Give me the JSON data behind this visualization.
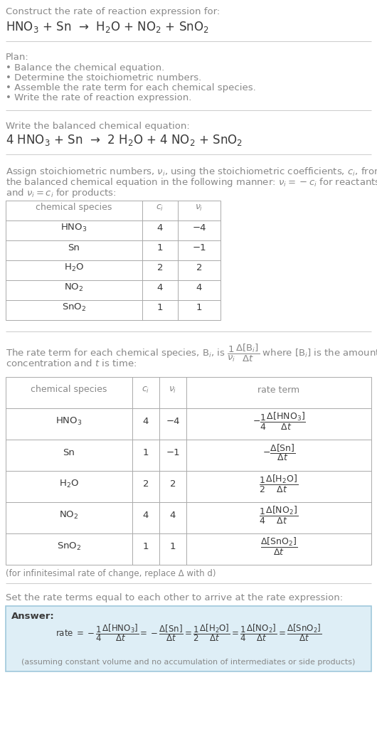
{
  "title_line1": "Construct the rate of reaction expression for:",
  "title_line2": "HNO$_3$ + Sn  →  H$_2$O + NO$_2$ + SnO$_2$",
  "plan_header": "Plan:",
  "plan_items": [
    "• Balance the chemical equation.",
    "• Determine the stoichiometric numbers.",
    "• Assemble the rate term for each chemical species.",
    "• Write the rate of reaction expression."
  ],
  "balanced_header": "Write the balanced chemical equation:",
  "balanced_eq": "4 HNO$_3$ + Sn  →  2 H$_2$O + 4 NO$_2$ + SnO$_2$",
  "stoich_intro_lines": [
    "Assign stoichiometric numbers, $\\nu_i$, using the stoichiometric coefficients, $c_i$, from",
    "the balanced chemical equation in the following manner: $\\nu_i = -c_i$ for reactants",
    "and $\\nu_i = c_i$ for products:"
  ],
  "table1_headers": [
    "chemical species",
    "$c_i$",
    "$\\nu_i$"
  ],
  "table1_rows": [
    [
      "HNO$_3$",
      "4",
      "−4"
    ],
    [
      "Sn",
      "1",
      "−1"
    ],
    [
      "H$_2$O",
      "2",
      "2"
    ],
    [
      "NO$_2$",
      "4",
      "4"
    ],
    [
      "SnO$_2$",
      "1",
      "1"
    ]
  ],
  "rate_intro_lines": [
    "The rate term for each chemical species, B$_i$, is $\\dfrac{1}{\\nu_i}\\dfrac{\\Delta[\\mathrm{B}_i]}{\\Delta t}$ where [B$_i$] is the amount",
    "concentration and $t$ is time:"
  ],
  "table2_headers": [
    "chemical species",
    "$c_i$",
    "$\\nu_i$",
    "rate term"
  ],
  "table2_rows": [
    [
      "HNO$_3$",
      "4",
      "−4",
      "$-\\dfrac{1}{4}\\dfrac{\\Delta[\\mathrm{HNO_3}]}{\\Delta t}$"
    ],
    [
      "Sn",
      "1",
      "−1",
      "$-\\dfrac{\\Delta[\\mathrm{Sn}]}{\\Delta t}$"
    ],
    [
      "H$_2$O",
      "2",
      "2",
      "$\\dfrac{1}{2}\\dfrac{\\Delta[\\mathrm{H_2O}]}{\\Delta t}$"
    ],
    [
      "NO$_2$",
      "4",
      "4",
      "$\\dfrac{1}{4}\\dfrac{\\Delta[\\mathrm{NO_2}]}{\\Delta t}$"
    ],
    [
      "SnO$_2$",
      "1",
      "1",
      "$\\dfrac{\\Delta[\\mathrm{SnO_2}]}{\\Delta t}$"
    ]
  ],
  "infinitesimal_note": "(for infinitesimal rate of change, replace Δ with d)",
  "set_equal_text": "Set the rate terms equal to each other to arrive at the rate expression:",
  "answer_label": "Answer:",
  "answer_box_color": "#deeef6",
  "answer_border_color": "#a0c8dc",
  "answer_rate_expr": "rate $= -\\dfrac{1}{4}\\dfrac{\\Delta[\\mathrm{HNO_3}]}{\\Delta t} = -\\dfrac{\\Delta[\\mathrm{Sn}]}{\\Delta t} = \\dfrac{1}{2}\\dfrac{\\Delta[\\mathrm{H_2O}]}{\\Delta t} = \\dfrac{1}{4}\\dfrac{\\Delta[\\mathrm{NO_2}]}{\\Delta t} = \\dfrac{\\Delta[\\mathrm{SnO_2}]}{\\Delta t}$",
  "answer_footnote": "(assuming constant volume and no accumulation of intermediates or side products)",
  "text_color": "#3a3a3a",
  "gray_text_color": "#888888",
  "line_color": "#cccccc",
  "table_line_color": "#aaaaaa",
  "bg_color": "#ffffff"
}
